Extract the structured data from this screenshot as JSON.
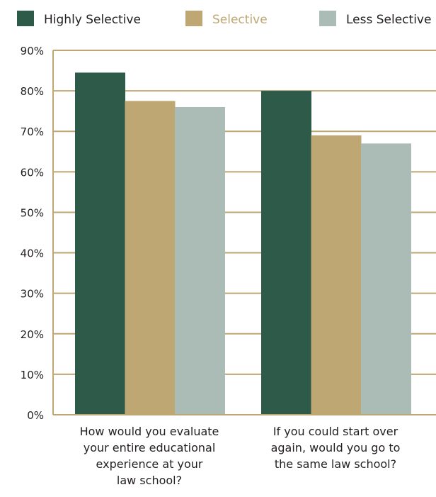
{
  "chart_data": {
    "type": "bar",
    "title": "",
    "xlabel": "",
    "ylabel": "",
    "ylim": [
      0,
      90
    ],
    "y_ticks": [
      "0%",
      "10%",
      "20%",
      "30%",
      "40%",
      "50%",
      "60%",
      "70%",
      "80%",
      "90%"
    ],
    "y_tick_values": [
      0,
      10,
      20,
      30,
      40,
      50,
      60,
      70,
      80,
      90
    ],
    "grid": true,
    "legend_position": "top",
    "categories": [
      [
        "How would you evaluate",
        "your entire educational",
        "experience at your",
        "law school?"
      ],
      [
        "If you could start over",
        "again, would you go to",
        "the same law school?"
      ]
    ],
    "series": [
      {
        "name": "Highly Selective",
        "values": [
          84.5,
          80
        ],
        "color": "#2e5a4a",
        "label_color": "#231f20"
      },
      {
        "name": "Selective",
        "values": [
          77.5,
          69
        ],
        "color": "#bea772",
        "label_color": "#bea772"
      },
      {
        "name": "Less Selective",
        "values": [
          76,
          67
        ],
        "color": "#abbcb6",
        "label_color": "#231f20"
      }
    ],
    "axis_color": "#bea772"
  }
}
